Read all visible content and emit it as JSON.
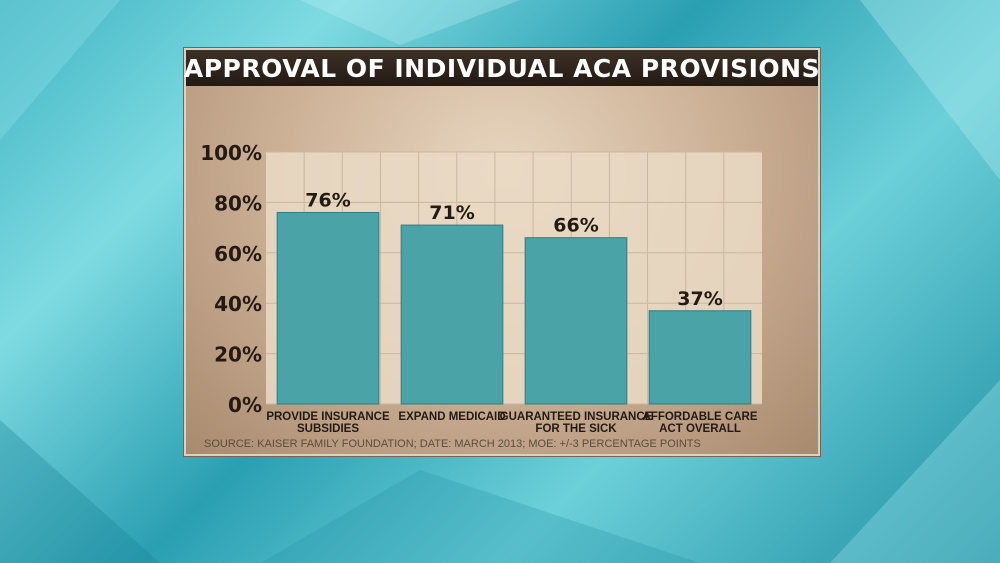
{
  "chart_data": {
    "type": "bar",
    "title": "APPROVAL OF INDIVIDUAL ACA PROVISIONS",
    "categories": [
      [
        "PROVIDE INSURANCE",
        "SUBSIDIES"
      ],
      [
        "EXPAND MEDICAID"
      ],
      [
        "GUARANTEED INSURANCE",
        "FOR THE SICK"
      ],
      [
        "AFFORDABLE CARE",
        "ACT OVERALL"
      ]
    ],
    "values": [
      76,
      71,
      66,
      37
    ],
    "value_labels": [
      "76%",
      "71%",
      "66%",
      "37%"
    ],
    "y_ticks": [
      0,
      20,
      40,
      60,
      80,
      100
    ],
    "y_tick_labels": [
      "0%",
      "20%",
      "40%",
      "60%",
      "80%",
      "100%"
    ],
    "ylim": [
      0,
      100
    ],
    "grid": true,
    "bar_color": "#4aa3a6",
    "source": "SOURCE: KAISER FAMILY FOUNDATION; DATE: MARCH 2013; MOE: +/-3 PERCENTAGE POINTS"
  }
}
